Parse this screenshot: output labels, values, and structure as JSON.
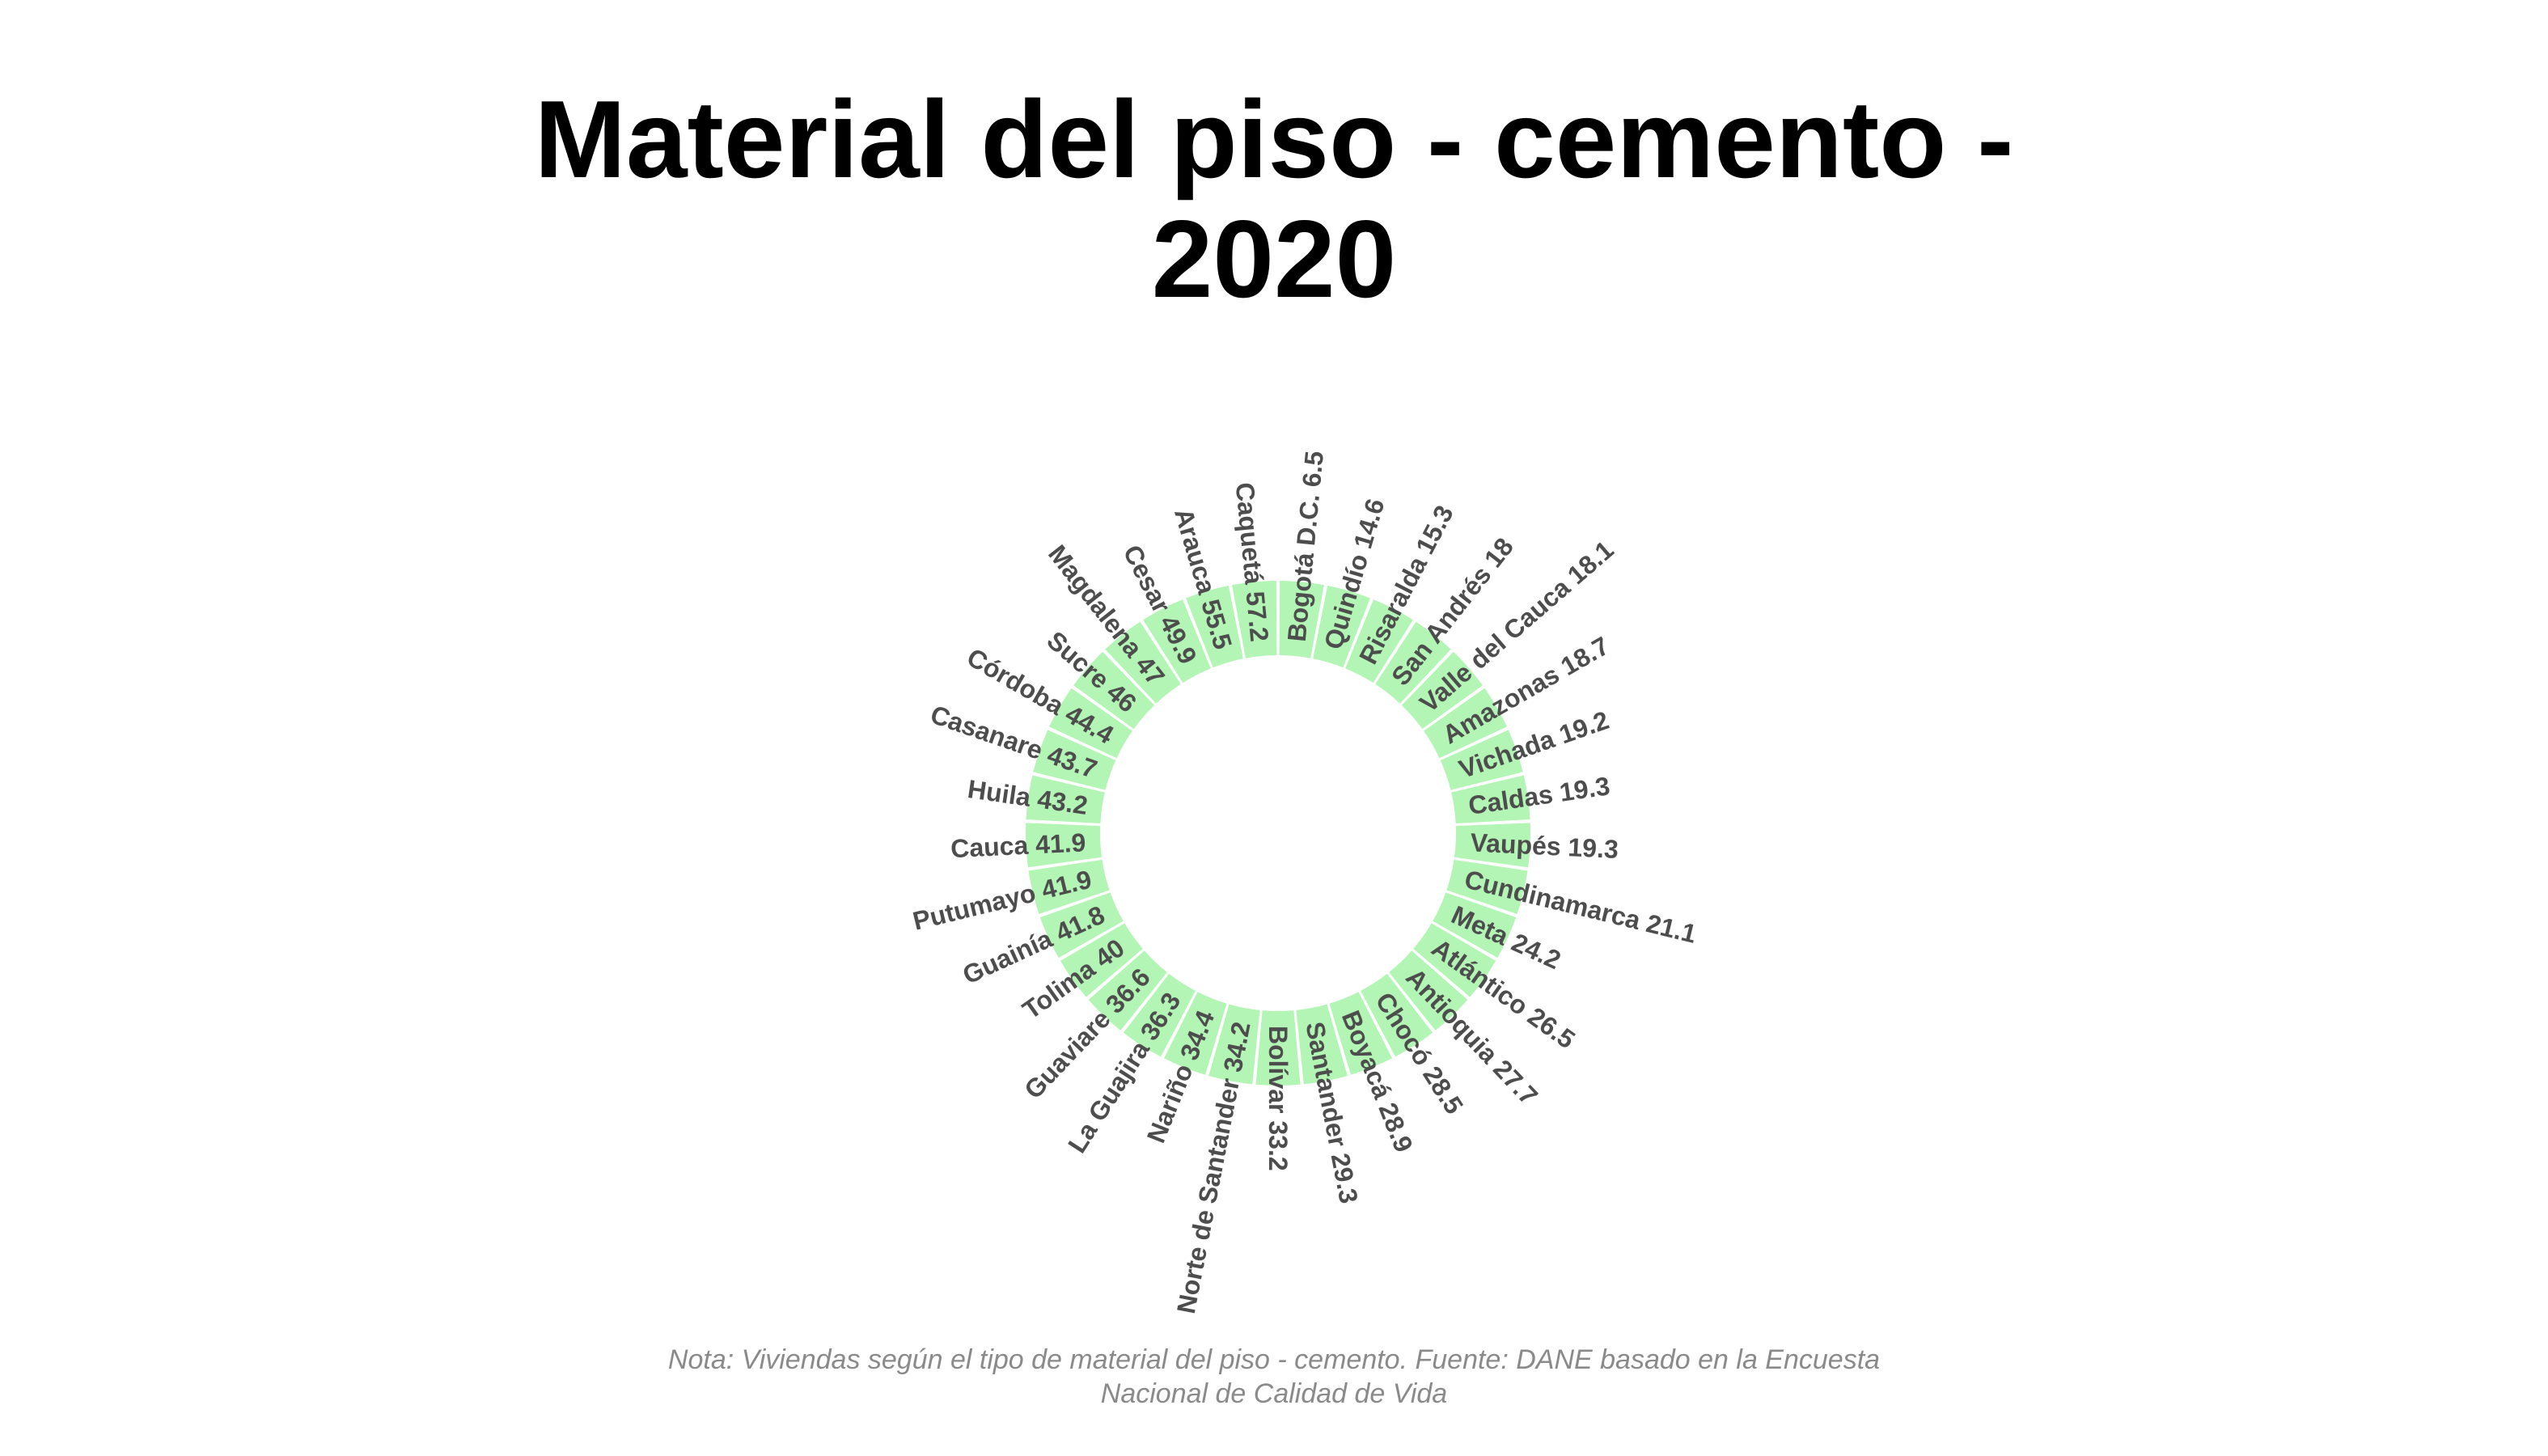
{
  "chart_data": {
    "type": "bar",
    "layout": "circular",
    "title_lines": [
      "Material del piso - cemento -",
      "2020"
    ],
    "note_lines": [
      "Nota: Viviendas según el tipo de material del piso - cemento. Fuente: DANE basado en la Encuesta",
      "Nacional de Calidad de Vida"
    ],
    "bar_color": "#b3f5b5",
    "label_color": "#4d4d4d",
    "ylim": [
      0,
      60
    ],
    "categories": [
      "Bogotá D.C.",
      "Quindío",
      "Risaralda",
      "San Andrés",
      "Valle del Cauca",
      "Amazonas",
      "Vichada",
      "Caldas",
      "Vaupés",
      "Cundinamarca",
      "Meta",
      "Atlántico",
      "Antioquia",
      "Chocó",
      "Boyacá",
      "Santander",
      "Bolívar",
      "Norte de Santander",
      "Nariño",
      "La Guajira",
      "Guaviare",
      "Tolima",
      "Guainía",
      "Putumayo",
      "Cauca",
      "Huila",
      "Casanare",
      "Córdoba",
      "Sucre",
      "Magdalena",
      "Cesar",
      "Arauca",
      "Caquetá"
    ],
    "values": [
      6.5,
      14.6,
      15.3,
      18,
      18.1,
      18.7,
      19.2,
      19.3,
      19.3,
      21.1,
      24.2,
      26.5,
      27.7,
      28.5,
      28.9,
      29.3,
      33.2,
      34.2,
      34.4,
      36.3,
      36.6,
      40,
      41.8,
      41.9,
      41.9,
      43.2,
      43.7,
      44.4,
      46,
      47,
      49.9,
      55.5,
      57.2
    ],
    "labels": [
      "Bogotá D.C. 6.5",
      "Quindío 14.6",
      "Risaralda 15.3",
      "San Andrés 18",
      "Valle del Cauca 18.1",
      "Amazonas 18.7",
      "Vichada 19.2",
      "Caldas 19.3",
      "Vaupés 19.3",
      "Cundinamarca 21.1",
      "Meta 24.2",
      "Atlántico 26.5",
      "Antioquia 27.7",
      "Chocó 28.5",
      "Boyacá 28.9",
      "Santander 29.3",
      "Bolívar 33.2",
      "Norte de Santander 34.2",
      "Nariño 34.4",
      "La Guajira 36.3",
      "Guaviare 36.6",
      "Tolima 40",
      "Guainía 41.8",
      "Putumayo 41.9",
      "Cauca 41.9",
      "Huila 43.2",
      "Casanare 43.7",
      "Córdoba 44.4",
      "Sucre 46",
      "Magdalena 47",
      "Cesar 49.9",
      "Arauca 55.5",
      "Caquetá 57.2"
    ]
  }
}
